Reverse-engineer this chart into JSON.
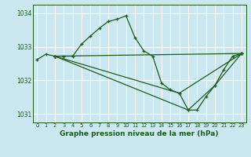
{
  "title": "Graphe pression niveau de la mer (hPa)",
  "background_color": "#cbe8f0",
  "grid_color": "#ffffff",
  "line_color": "#1a5c1a",
  "xlim": [
    -0.5,
    23.5
  ],
  "ylim": [
    1030.75,
    1034.25
  ],
  "yticks": [
    1031,
    1032,
    1033,
    1034
  ],
  "xticks": [
    0,
    1,
    2,
    3,
    4,
    5,
    6,
    7,
    8,
    9,
    10,
    11,
    12,
    13,
    14,
    15,
    16,
    17,
    18,
    19,
    20,
    21,
    22,
    23
  ],
  "series": [
    {
      "x": [
        0,
        1,
        2,
        3,
        4,
        5,
        6,
        7,
        8,
        9,
        10,
        11,
        12,
        13,
        14,
        15,
        16,
        17,
        18,
        19,
        20,
        21,
        22,
        23
      ],
      "y": [
        1032.62,
        1032.78,
        1032.72,
        1032.72,
        1032.72,
        1033.08,
        1033.32,
        1033.55,
        1033.75,
        1033.82,
        1033.92,
        1033.28,
        1032.88,
        1032.72,
        1031.92,
        1031.72,
        1031.62,
        1031.12,
        1031.12,
        1031.52,
        1031.85,
        1032.32,
        1032.72,
        1032.8
      ]
    },
    {
      "x": [
        2,
        23
      ],
      "y": [
        1032.72,
        1032.8
      ]
    },
    {
      "x": [
        2,
        16,
        23
      ],
      "y": [
        1032.72,
        1031.62,
        1032.8
      ]
    },
    {
      "x": [
        2,
        17,
        20,
        23
      ],
      "y": [
        1032.72,
        1031.12,
        1031.85,
        1032.8
      ]
    }
  ]
}
